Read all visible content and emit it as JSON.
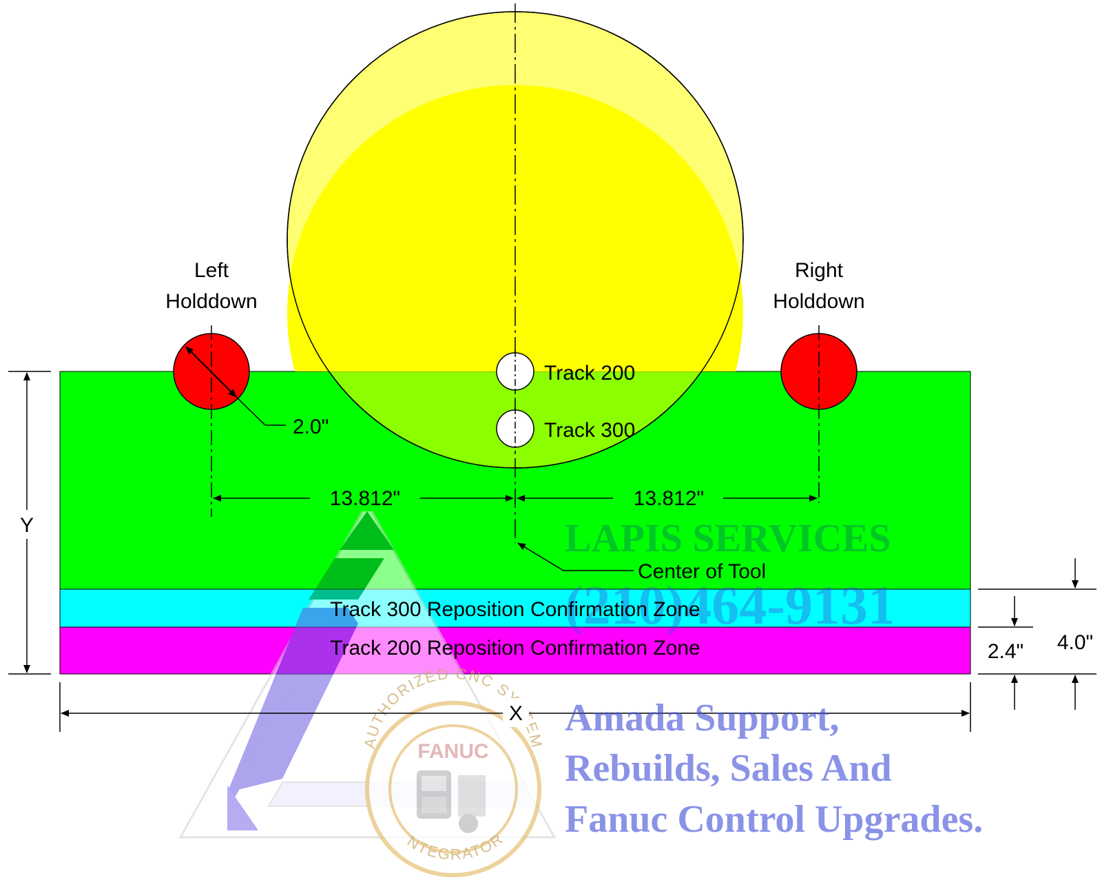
{
  "labels": {
    "left_holddown_line1": "Left",
    "left_holddown_line2": "Holddown",
    "right_holddown_line1": "Right",
    "right_holddown_line2": "Holddown",
    "track_200": "Track 200",
    "track_300": "Track 300",
    "holddown_diameter": "2.0\"",
    "left_offset": "13.812\"",
    "right_offset": "13.812\"",
    "center_of_tool": "Center of Tool",
    "zone_300": "Track 300 Reposition Confirmation Zone",
    "zone_200": "Track 200 Reposition Confirmation Zone",
    "dim_y": "Y",
    "dim_x": "X",
    "dim_2_4": "2.4\"",
    "dim_4_0": "4.0\""
  },
  "watermark": {
    "company": "LAPIS SERVICES",
    "phone": "(210)464-9131",
    "tagline_line1": "Amada Support,",
    "tagline_line2": "Rebuilds, Sales  And",
    "tagline_line3": "Fanuc Control Upgrades.",
    "seal_top": "AUTHORIZED CNC SYSTEM",
    "seal_bottom": "INTEGRATOR",
    "seal_brand": "FANUC"
  },
  "colors": {
    "tool": "#ffff00",
    "work_area": "#00ff00",
    "zone_300": "#00ffff",
    "zone_200": "#ff00ff",
    "holddown": "#ff0000",
    "watermark_blue": "#3d4bd6",
    "watermark_green": "#00a040",
    "seal_gold": "#e8c37a"
  }
}
